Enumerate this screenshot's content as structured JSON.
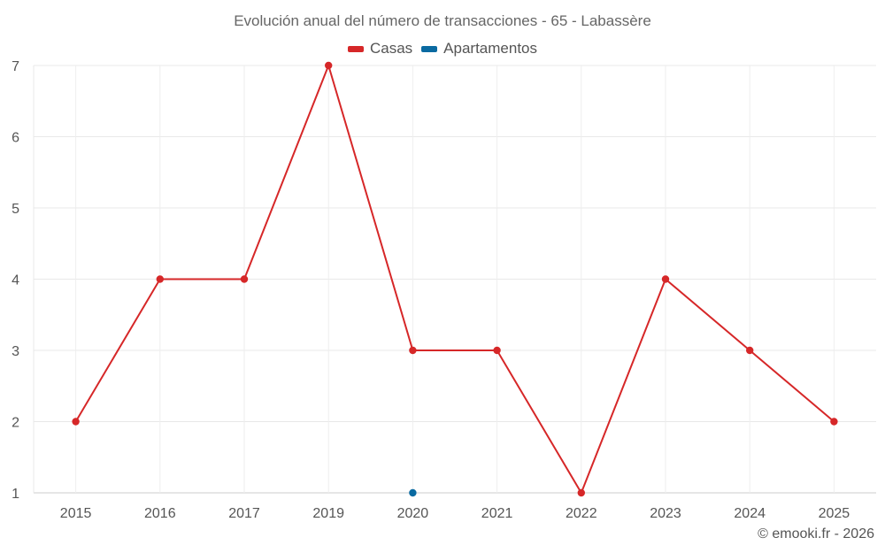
{
  "chart_data": {
    "type": "line",
    "title": "Evolución anual del número de transacciones - 65 - Labassère",
    "categories": [
      "2015",
      "2016",
      "2017",
      "2019",
      "2020",
      "2021",
      "2022",
      "2023",
      "2024",
      "2025"
    ],
    "series": [
      {
        "name": "Casas",
        "color": "#d62728",
        "values": [
          2,
          4,
          4,
          7,
          3,
          3,
          1,
          4,
          3,
          2
        ]
      },
      {
        "name": "Apartamentos",
        "color": "#0a6aa1",
        "values": [
          null,
          null,
          null,
          null,
          1,
          null,
          null,
          null,
          null,
          null
        ]
      }
    ],
    "ylim": [
      1,
      7
    ],
    "yticks": [
      1,
      2,
      3,
      4,
      5,
      6,
      7
    ],
    "grid": true,
    "legend_position": "top-center",
    "xlabel": "",
    "ylabel": ""
  },
  "footer": {
    "credit": "© emooki.fr - 2026"
  }
}
